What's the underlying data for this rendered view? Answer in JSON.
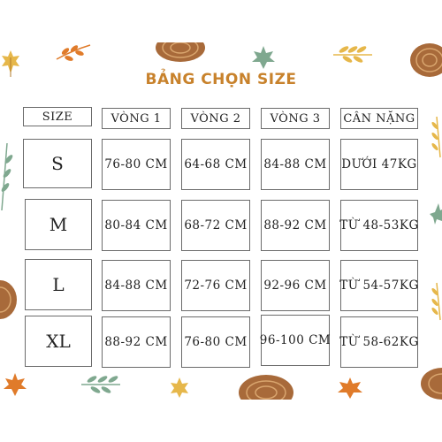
{
  "title": "BẢNG CHỌN SIZE",
  "colors": {
    "title": "#c8822c",
    "border": "#6b6b6b",
    "leaf_orange": "#e07b2a",
    "leaf_yellow": "#e6b74a",
    "leaf_green": "#7fa88f",
    "wood": "#a86a3a"
  },
  "headers": {
    "size": "SIZE",
    "v1": "VÒNG 1",
    "v2": "VÒNG 2",
    "v3": "VÒNG 3",
    "weight": "CÂN NẶNG"
  },
  "rows": [
    {
      "size": "S",
      "v1": "76-80 CM",
      "v2": "64-68 CM",
      "v3": "84-88 CM",
      "weight": "DƯỚI 47KG"
    },
    {
      "size": "M",
      "v1": "80-84 CM",
      "v2": "68-72 CM",
      "v3": "88-92 CM",
      "weight": "TỪ 48-53KG"
    },
    {
      "size": "L",
      "v1": "84-88 CM",
      "v2": "72-76 CM",
      "v3": "92-96 CM",
      "weight": "TỪ 54-57KG"
    },
    {
      "size": "XL",
      "v1": "88-92 CM",
      "v2": "76-80 CM",
      "v3": "96-100 CM",
      "weight": "TỪ 58-62KG"
    }
  ]
}
